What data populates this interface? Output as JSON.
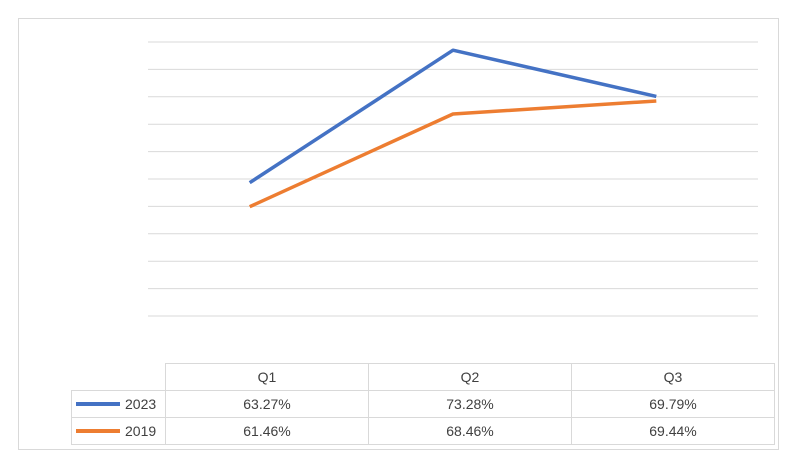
{
  "chart_data": {
    "type": "line",
    "categories": [
      "Q1",
      "Q2",
      "Q3"
    ],
    "series": [
      {
        "name": "2023",
        "values": [
          63.27,
          73.28,
          69.79
        ],
        "labels": [
          "63.27%",
          "73.28%",
          "69.79%"
        ],
        "color": "#4472c4"
      },
      {
        "name": "2019",
        "values": [
          61.46,
          68.46,
          69.44
        ],
        "labels": [
          "61.46%",
          "68.46%",
          "69.44%"
        ],
        "color": "#ed7d31"
      }
    ],
    "ylim": [
      53.2,
      73.9
    ],
    "y_gridlines": 10,
    "y_tick_labels_visible": false,
    "legend": "data table",
    "grid": true,
    "title": "",
    "xlabel": "",
    "ylabel": ""
  }
}
